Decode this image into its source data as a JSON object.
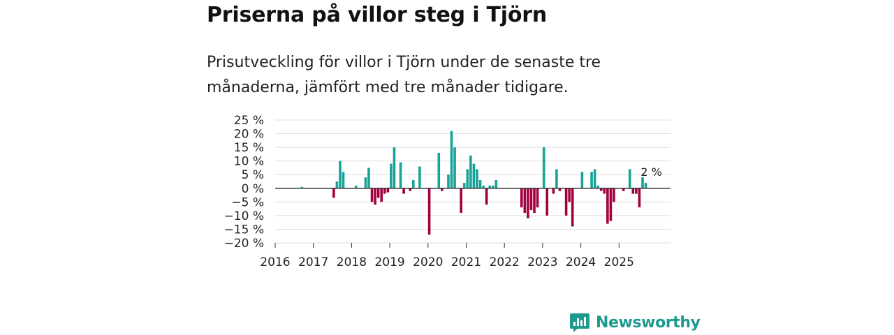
{
  "title": "Priserna på villor steg i Tjörn",
  "subtitle": "Prisutveckling för villor i Tjörn under de senaste tre månaderna, jämfört med tre månader tidigare.",
  "brand": {
    "name": "Newsworthy",
    "logo_icon": "newsworthy-logo-icon"
  },
  "colors": {
    "positive": "#17a398",
    "negative": "#a3003f",
    "grid": "#dddddd",
    "zero": "#333333",
    "brand": "#1d9a8e"
  },
  "chart_data": {
    "type": "bar",
    "title": "Priserna på villor steg i Tjörn",
    "xlabel": "",
    "ylabel": "",
    "ylim": [
      -20,
      25
    ],
    "yticks": [
      25,
      20,
      15,
      10,
      5,
      0,
      -5,
      -10,
      -15,
      -20
    ],
    "ytick_labels": [
      "25 %",
      "20 %",
      "15 %",
      "10 %",
      "5 %",
      "0 %",
      "−5 %",
      "−10 %",
      "−15 %",
      "−20 %"
    ],
    "xticks": [
      "2016",
      "2017",
      "2018",
      "2019",
      "2020",
      "2021",
      "2022",
      "2023",
      "2024",
      "2025"
    ],
    "start_year": 2016,
    "annotation": {
      "text": "2 %",
      "year": 2025,
      "month": 9
    },
    "bars": [
      {
        "year": 2016,
        "month": 8,
        "value": 0.5
      },
      {
        "year": 2017,
        "month": 6,
        "value": -3.5
      },
      {
        "year": 2017,
        "month": 7,
        "value": 2.5
      },
      {
        "year": 2017,
        "month": 8,
        "value": 10
      },
      {
        "year": 2017,
        "month": 9,
        "value": 6
      },
      {
        "year": 2018,
        "month": 1,
        "value": 1
      },
      {
        "year": 2018,
        "month": 4,
        "value": 4
      },
      {
        "year": 2018,
        "month": 5,
        "value": 7.5
      },
      {
        "year": 2018,
        "month": 6,
        "value": -5
      },
      {
        "year": 2018,
        "month": 7,
        "value": -6
      },
      {
        "year": 2018,
        "month": 8,
        "value": -3.5
      },
      {
        "year": 2018,
        "month": 9,
        "value": -5
      },
      {
        "year": 2018,
        "month": 10,
        "value": -2
      },
      {
        "year": 2018,
        "month": 11,
        "value": -1.5
      },
      {
        "year": 2019,
        "month": 0,
        "value": 9
      },
      {
        "year": 2019,
        "month": 1,
        "value": 15
      },
      {
        "year": 2019,
        "month": 3,
        "value": 9.5
      },
      {
        "year": 2019,
        "month": 4,
        "value": -2
      },
      {
        "year": 2019,
        "month": 6,
        "value": -1
      },
      {
        "year": 2019,
        "month": 7,
        "value": 3
      },
      {
        "year": 2019,
        "month": 9,
        "value": 8
      },
      {
        "year": 2020,
        "month": 0,
        "value": -17
      },
      {
        "year": 2020,
        "month": 3,
        "value": 13
      },
      {
        "year": 2020,
        "month": 4,
        "value": -1
      },
      {
        "year": 2020,
        "month": 6,
        "value": 5
      },
      {
        "year": 2020,
        "month": 7,
        "value": 21
      },
      {
        "year": 2020,
        "month": 8,
        "value": 15
      },
      {
        "year": 2020,
        "month": 10,
        "value": -9
      },
      {
        "year": 2020,
        "month": 11,
        "value": 2
      },
      {
        "year": 2021,
        "month": 0,
        "value": 7
      },
      {
        "year": 2021,
        "month": 1,
        "value": 12
      },
      {
        "year": 2021,
        "month": 2,
        "value": 9
      },
      {
        "year": 2021,
        "month": 3,
        "value": 7
      },
      {
        "year": 2021,
        "month": 4,
        "value": 3
      },
      {
        "year": 2021,
        "month": 5,
        "value": 1
      },
      {
        "year": 2021,
        "month": 6,
        "value": -6
      },
      {
        "year": 2021,
        "month": 7,
        "value": 1
      },
      {
        "year": 2021,
        "month": 8,
        "value": 1
      },
      {
        "year": 2021,
        "month": 9,
        "value": 3
      },
      {
        "year": 2022,
        "month": 5,
        "value": -7
      },
      {
        "year": 2022,
        "month": 6,
        "value": -9
      },
      {
        "year": 2022,
        "month": 7,
        "value": -11
      },
      {
        "year": 2022,
        "month": 8,
        "value": -8
      },
      {
        "year": 2022,
        "month": 9,
        "value": -9
      },
      {
        "year": 2022,
        "month": 10,
        "value": -7
      },
      {
        "year": 2023,
        "month": 0,
        "value": 15
      },
      {
        "year": 2023,
        "month": 1,
        "value": -10
      },
      {
        "year": 2023,
        "month": 3,
        "value": -2
      },
      {
        "year": 2023,
        "month": 4,
        "value": 7
      },
      {
        "year": 2023,
        "month": 5,
        "value": -1
      },
      {
        "year": 2023,
        "month": 7,
        "value": -10
      },
      {
        "year": 2023,
        "month": 8,
        "value": -5
      },
      {
        "year": 2023,
        "month": 9,
        "value": -14
      },
      {
        "year": 2024,
        "month": 0,
        "value": 6
      },
      {
        "year": 2024,
        "month": 3,
        "value": 6
      },
      {
        "year": 2024,
        "month": 4,
        "value": 7
      },
      {
        "year": 2024,
        "month": 5,
        "value": 1
      },
      {
        "year": 2024,
        "month": 6,
        "value": -1
      },
      {
        "year": 2024,
        "month": 7,
        "value": -2
      },
      {
        "year": 2024,
        "month": 8,
        "value": -13
      },
      {
        "year": 2024,
        "month": 9,
        "value": -12
      },
      {
        "year": 2024,
        "month": 10,
        "value": -5
      },
      {
        "year": 2025,
        "month": 1,
        "value": -1
      },
      {
        "year": 2025,
        "month": 3,
        "value": 7
      },
      {
        "year": 2025,
        "month": 4,
        "value": -2
      },
      {
        "year": 2025,
        "month": 5,
        "value": -2
      },
      {
        "year": 2025,
        "month": 6,
        "value": -7
      },
      {
        "year": 2025,
        "month": 7,
        "value": 4
      },
      {
        "year": 2025,
        "month": 8,
        "value": 2
      }
    ]
  }
}
